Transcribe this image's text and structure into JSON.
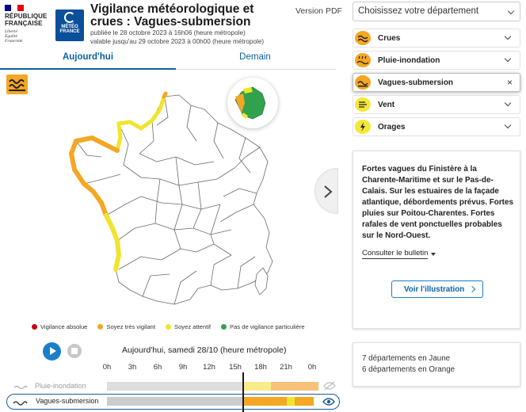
{
  "header": {
    "republique_lines": "RÉPUBLIQUE FRANÇAISE",
    "motto": "Liberté Égalité Fraternité",
    "meteo_logo": "MÉTÉO FRANCE",
    "title": "Vigilance météorologique et crues : Vagues-submersion",
    "published": "publiée le 28 octobre 2023 à 16h06 (heure métropole)",
    "valid_until": "valable jusqu'au 29 octobre 2023 à 00h00 (heure métropole)",
    "version_pdf": "Version PDF"
  },
  "tabs": {
    "today": "Aujourd'hui",
    "tomorrow": "Demain"
  },
  "colors": {
    "accent": "#0b61a4",
    "orange": "#f5a623",
    "yellow": "#f5e73a",
    "green": "#31a24c",
    "red": "#d9001b"
  },
  "legend": [
    {
      "label": "Vigilance absolue",
      "color": "#c8000d"
    },
    {
      "label": "Soyez très vigilant",
      "color": "#f5a623"
    },
    {
      "label": "Soyez attentif",
      "color": "#f0e52c"
    },
    {
      "label": "Pas de vigilance particulière",
      "color": "#31a24c"
    }
  ],
  "timeline": {
    "title": "Aujourd'hui, samedi 28/10 (heure métropole)",
    "hours": [
      "0h",
      "3h",
      "6h",
      "9h",
      "12h",
      "15h",
      "18h",
      "21h",
      "0h"
    ],
    "rows": [
      {
        "label": "Pluie-inondation",
        "icon": "rain-flood-icon"
      },
      {
        "label": "Vagues-submersion",
        "icon": "waves-icon"
      }
    ]
  },
  "sidebar": {
    "department_select": "Choisissez votre département",
    "risks": [
      {
        "label": "Crues",
        "icon": "flood-icon",
        "color": "#f5a623"
      },
      {
        "label": "Pluie-inondation",
        "icon": "rain-flood-icon",
        "color": "#f5a623"
      },
      {
        "label": "Vagues-submersion",
        "icon": "waves-icon",
        "color": "#f5a623"
      },
      {
        "label": "Vent",
        "icon": "wind-icon",
        "color": "#f5e73a"
      },
      {
        "label": "Orages",
        "icon": "storm-icon",
        "color": "#f5e73a"
      }
    ],
    "bulletin_text": "Fortes vagues du Finistère à la Charente-Maritime et sur le Pas-de-Calais. Sur les estuaires de la façade atlantique, débordements prévus. Fortes pluies sur Poitou-Charentes. Fortes rafales de vent ponctuelles probables sur le Nord-Ouest.",
    "bulletin_link": "Consulter le bulletin",
    "illustration_button": "Voir l'illustration",
    "summary_yellow": "7 départements en Jaune",
    "summary_orange": "6 départements en Orange"
  }
}
